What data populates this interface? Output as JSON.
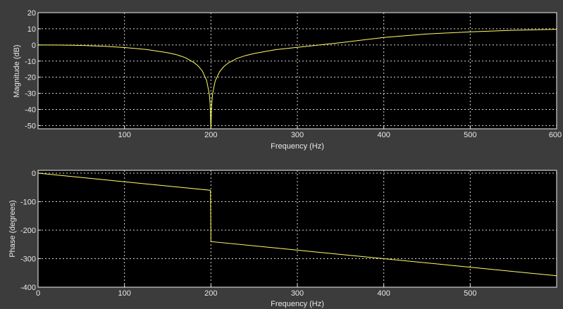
{
  "colors": {
    "figure_bg": "#3c3c3c",
    "axes_bg": "#000000",
    "trace": "#ffff66",
    "text": "#e8e8e8"
  },
  "chart_data": [
    {
      "type": "line",
      "xlabel": "Frequency (Hz)",
      "ylabel": "Magnitude (dB)",
      "xlim": [
        0,
        600
      ],
      "ylim": [
        -52,
        20
      ],
      "xticks": [
        100,
        200,
        300,
        400,
        500,
        600
      ],
      "yticks": [
        20,
        10,
        0,
        -10,
        -20,
        -30,
        -40,
        -50
      ],
      "grid": true,
      "series": [
        {
          "x": [
            0,
            25,
            50,
            75,
            100,
            125,
            150,
            160,
            170,
            180,
            185,
            190,
            195,
            198,
            199,
            200,
            201,
            202,
            205,
            210,
            215,
            220,
            230,
            240,
            250,
            275,
            300,
            350,
            400,
            450,
            500,
            550,
            600
          ],
          "y": [
            0,
            -0.1,
            -0.3,
            -0.8,
            -1.6,
            -2.8,
            -4.8,
            -6.0,
            -7.8,
            -10.8,
            -12.9,
            -16.1,
            -22.0,
            -30.0,
            -36.0,
            -52.0,
            -36.0,
            -30.0,
            -22.3,
            -16.6,
            -13.4,
            -11.2,
            -8.4,
            -6.6,
            -5.3,
            -2.9,
            -1.5,
            1.4,
            4.6,
            6.8,
            8.1,
            9.1,
            9.7
          ]
        }
      ]
    },
    {
      "type": "line",
      "xlabel": "Frequency (Hz)",
      "ylabel": "Phase (degrees)",
      "xlim": [
        0,
        600
      ],
      "ylim": [
        -400,
        10
      ],
      "xticks": [
        0,
        100,
        200,
        300,
        400,
        500
      ],
      "yticks": [
        0,
        -100,
        -200,
        -300,
        -400
      ],
      "grid": true,
      "series": [
        {
          "x": [
            0,
            100,
            199.5,
            199.5,
            200,
            300,
            400,
            500,
            600
          ],
          "y": [
            0,
            -30,
            -60,
            -60,
            -240,
            -270,
            -300,
            -330,
            -360
          ]
        }
      ]
    }
  ]
}
